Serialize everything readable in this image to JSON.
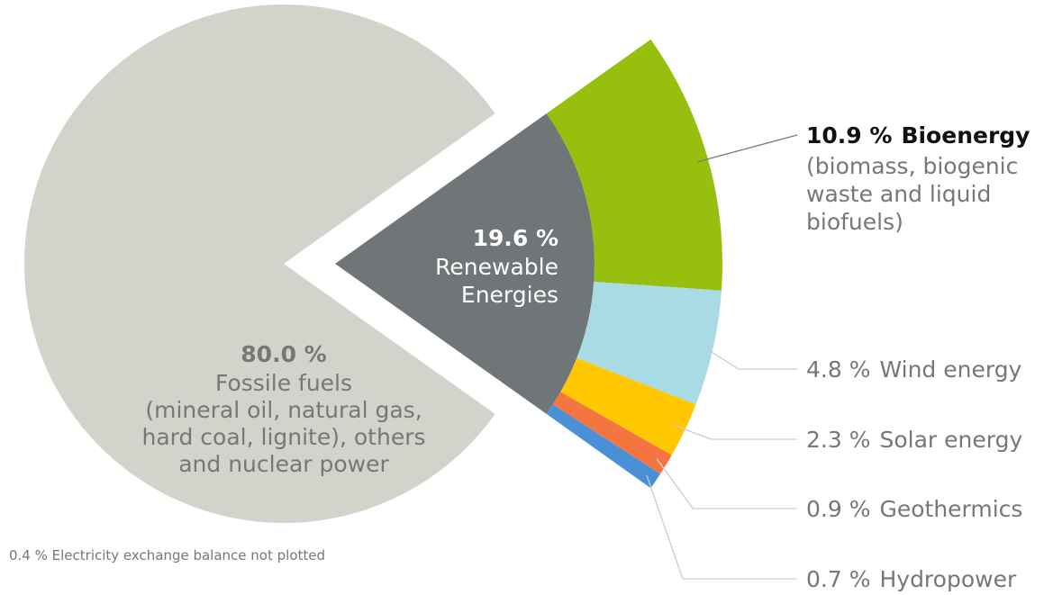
{
  "chart_data": {
    "type": "pie",
    "categories": [
      [
        "Fossile fuels",
        "(mineral oil, natural gas,",
        "hard coal, lignite), others",
        "and nuclear power"
      ],
      [
        "Renewable",
        "Energies"
      ]
    ],
    "values": [
      80.0,
      19.6
    ],
    "value_labels": [
      "80.0 %",
      "19.6 %"
    ],
    "colors": [
      "#d3d3cb",
      "#707577"
    ],
    "breakdown": {
      "categories": [
        "Bioenergy",
        "Wind energy",
        "Solar energy",
        "Geothermics",
        "Hydropower"
      ],
      "values": [
        10.9,
        4.8,
        2.3,
        0.9,
        0.7
      ],
      "value_labels": [
        "10.9 %",
        "4.8 %",
        "2.3 %",
        "0.9 %",
        "0.7 %"
      ],
      "colors": [
        "#97c00e",
        "#a8dbe3",
        "#ffc800",
        "#f47540",
        "#4a90d6"
      ],
      "description": [
        "(biomass, biogenic",
        "waste and liquid",
        "biofuels)"
      ]
    },
    "note": "0.4 % Electricity exchange balance not plotted"
  }
}
